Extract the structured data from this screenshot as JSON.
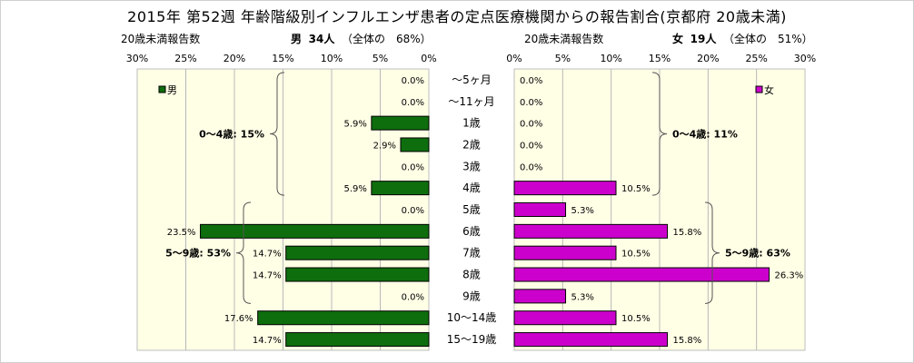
{
  "title": "2015年 第52週 年齢階級別インフルエンザ患者の定点医療機関からの報告割合(京都府 20歳未満)",
  "left_header": {
    "label": "20歳未満報告数",
    "group": "男",
    "count": "34人",
    "share": "（全体の　68%）"
  },
  "right_header": {
    "label": "20歳未満報告数",
    "group": "女",
    "count": "19人",
    "share": "（全体の　51%）"
  },
  "chart_data": [
    {
      "type": "bar",
      "orientation": "horizontal-reversed",
      "legend": "男",
      "legend_position": "top-left",
      "color": "#0e6e0e",
      "categories": [
        "～5ヶ月",
        "～11ヶ月",
        "1歳",
        "2歳",
        "3歳",
        "4歳",
        "5歳",
        "6歳",
        "7歳",
        "8歳",
        "9歳",
        "10～14歳",
        "15～19歳"
      ],
      "values": [
        0.0,
        0.0,
        5.9,
        2.9,
        0.0,
        5.9,
        0.0,
        23.5,
        14.7,
        14.7,
        0.0,
        17.6,
        14.7
      ],
      "value_labels": [
        "0.0%",
        "0.0%",
        "5.9%",
        "2.9%",
        "0.0%",
        "5.9%",
        "0.0%",
        "23.5%",
        "14.7%",
        "14.7%",
        "0.0%",
        "17.6%",
        "14.7%"
      ],
      "xlim": [
        0,
        30
      ],
      "ticks": [
        "30%",
        "25%",
        "20%",
        "15%",
        "10%",
        "5%",
        "0%"
      ],
      "groups": [
        {
          "label": "0～4歳: 15%",
          "from": 0,
          "to": 5
        },
        {
          "label": "5～9歳: 53%",
          "from": 6,
          "to": 10
        }
      ]
    },
    {
      "type": "bar",
      "orientation": "horizontal",
      "legend": "女",
      "legend_position": "top-right",
      "color": "#cc00cc",
      "categories": [
        "～5ヶ月",
        "～11ヶ月",
        "1歳",
        "2歳",
        "3歳",
        "4歳",
        "5歳",
        "6歳",
        "7歳",
        "8歳",
        "9歳",
        "10～14歳",
        "15～19歳"
      ],
      "values": [
        0.0,
        0.0,
        0.0,
        0.0,
        0.0,
        10.5,
        5.3,
        15.8,
        10.5,
        26.3,
        5.3,
        10.5,
        15.8
      ],
      "value_labels": [
        "0.0%",
        "0.0%",
        "0.0%",
        "0.0%",
        "0.0%",
        "10.5%",
        "5.3%",
        "15.8%",
        "10.5%",
        "26.3%",
        "5.3%",
        "10.5%",
        "15.8%"
      ],
      "xlim": [
        0,
        30
      ],
      "ticks": [
        "0%",
        "5%",
        "10%",
        "15%",
        "20%",
        "25%",
        "30%"
      ],
      "groups": [
        {
          "label": "0～4歳: 11%",
          "from": 0,
          "to": 5
        },
        {
          "label": "5～9歳: 63%",
          "from": 6,
          "to": 10
        }
      ]
    }
  ]
}
